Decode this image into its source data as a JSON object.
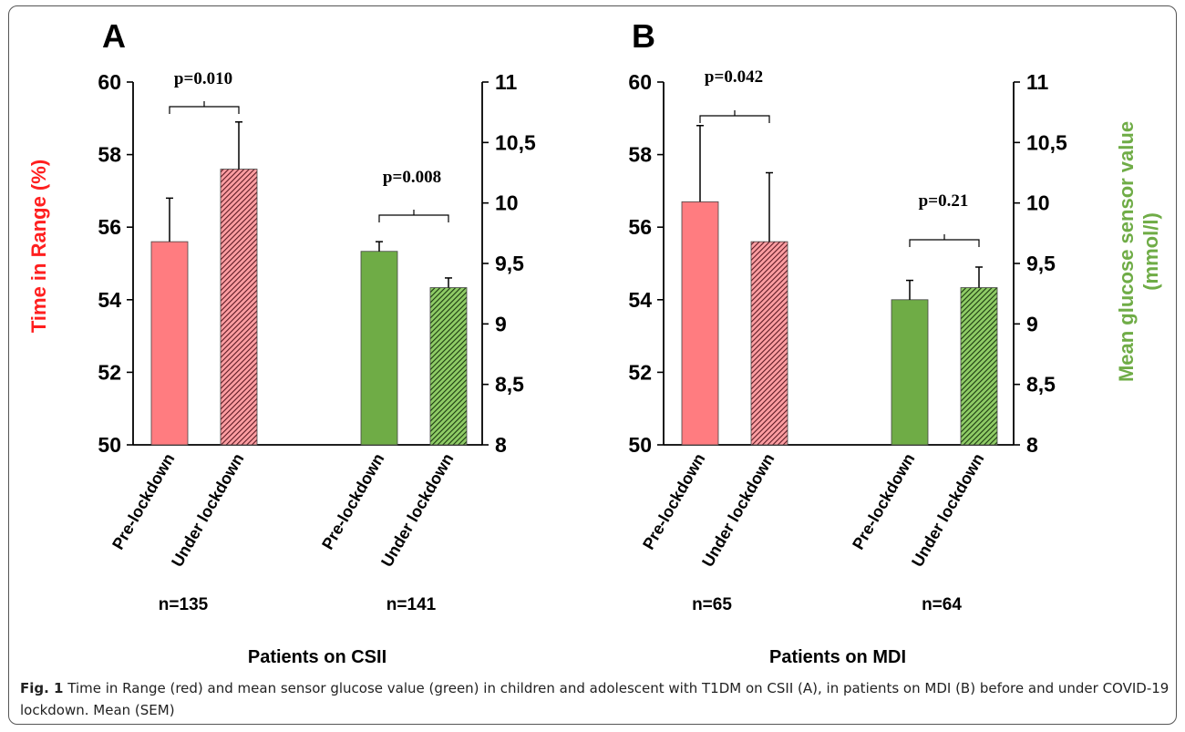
{
  "chart_data": [
    {
      "panel_label": "A",
      "type": "bar",
      "categories": [
        "Pre-lockdown",
        "Under lockdown",
        "Pre-lockdown",
        "Under lockdown"
      ],
      "series": [
        {
          "axis": "left",
          "bars": [
            {
              "value": 55.6,
              "sem": 1.2,
              "pattern": "solid"
            },
            {
              "value": 57.6,
              "sem": 1.3,
              "pattern": "hatched"
            }
          ],
          "color": "#ff7c80"
        },
        {
          "axis": "right",
          "bars": [
            {
              "value": 9.6,
              "sem": 0.08,
              "pattern": "solid"
            },
            {
              "value": 9.3,
              "sem": 0.08,
              "pattern": "hatched"
            }
          ],
          "color": "#6fac46"
        }
      ],
      "left_axis": {
        "ylim": [
          50,
          60
        ],
        "ticks": [
          "50",
          "52",
          "54",
          "56",
          "58",
          "60"
        ]
      },
      "right_axis": {
        "ylim": [
          8,
          11
        ],
        "ticks": [
          "8",
          "8,5",
          "9",
          "9,5",
          "10",
          "10,5",
          "11"
        ]
      },
      "pvalues": [
        "p=0.010",
        "p=0.008"
      ],
      "n_labels": [
        "n=135",
        "n=141"
      ],
      "xlabel": "Patients on CSII"
    },
    {
      "panel_label": "B",
      "type": "bar",
      "categories": [
        "Pre-lockdown",
        "Under lockdown",
        "Pre-lockdown",
        "Under lockdown"
      ],
      "series": [
        {
          "axis": "left",
          "bars": [
            {
              "value": 56.7,
              "sem": 2.1,
              "pattern": "solid"
            },
            {
              "value": 55.6,
              "sem": 1.9,
              "pattern": "hatched"
            }
          ],
          "color": "#ff7c80"
        },
        {
          "axis": "right",
          "bars": [
            {
              "value": 9.2,
              "sem": 0.16,
              "pattern": "solid"
            },
            {
              "value": 9.3,
              "sem": 0.17,
              "pattern": "hatched"
            }
          ],
          "color": "#6fac46"
        }
      ],
      "left_axis": {
        "ylim": [
          50,
          60
        ],
        "ticks": [
          "50",
          "52",
          "54",
          "56",
          "58",
          "60"
        ]
      },
      "right_axis": {
        "ylim": [
          8,
          11
        ],
        "ticks": [
          "8",
          "8,5",
          "9",
          "9,5",
          "10",
          "10,5",
          "11"
        ]
      },
      "pvalues": [
        "p=0.042",
        "p=0.21"
      ],
      "n_labels": [
        "n=65",
        "n=64"
      ],
      "xlabel": "Patients on MDI"
    }
  ],
  "left_ylabel": "Time in Range (%)",
  "right_ylabel_line1": "Mean glucose sensor value",
  "right_ylabel_line2": "(mmol/l)",
  "left_ylabel_color": "#ff1f1f",
  "right_ylabel_color": "#6fac46",
  "caption": {
    "fig_label": "Fig. 1",
    "text": "Time in Range (red) and mean sensor glucose value (green) in children and adolescent with T1DM on CSII (A), in patients on MDI (B) before and under COVID-19 lockdown. Mean (SEM)"
  }
}
